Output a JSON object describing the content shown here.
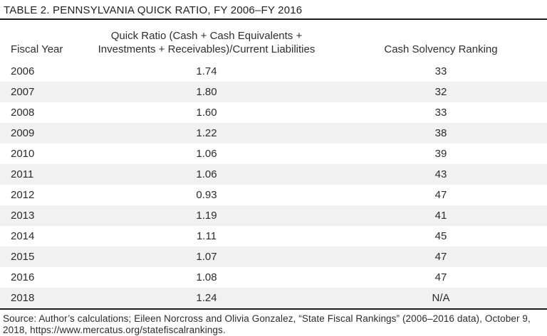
{
  "page": {
    "title": "TABLE 2. PENNSYLVANIA QUICK RATIO, FY 2006–FY 2016"
  },
  "table": {
    "header": {
      "fiscal_year": "Fiscal Year",
      "quick_ratio_line1": "Quick Ratio (Cash + Cash Equivalents +",
      "quick_ratio_line2": "Investments + Receivables)/Current Liabilities",
      "cash_solvency": "Cash Solvency Ranking"
    },
    "rows": [
      {
        "fiscal_year": "2006",
        "quick_ratio": "1.74",
        "ranking": "33"
      },
      {
        "fiscal_year": "2007",
        "quick_ratio": "1.80",
        "ranking": "32"
      },
      {
        "fiscal_year": "2008",
        "quick_ratio": "1.60",
        "ranking": "33"
      },
      {
        "fiscal_year": "2009",
        "quick_ratio": "1.22",
        "ranking": "38"
      },
      {
        "fiscal_year": "2010",
        "quick_ratio": "1.06",
        "ranking": "39"
      },
      {
        "fiscal_year": "2011",
        "quick_ratio": "1.06",
        "ranking": "43"
      },
      {
        "fiscal_year": "2012",
        "quick_ratio": "0.93",
        "ranking": "47"
      },
      {
        "fiscal_year": "2013",
        "quick_ratio": "1.19",
        "ranking": "41"
      },
      {
        "fiscal_year": "2014",
        "quick_ratio": "1.11",
        "ranking": "45"
      },
      {
        "fiscal_year": "2015",
        "quick_ratio": "1.07",
        "ranking": "47"
      },
      {
        "fiscal_year": "2016",
        "quick_ratio": "1.08",
        "ranking": "47"
      },
      {
        "fiscal_year": "2018",
        "quick_ratio": "1.24",
        "ranking": "N/A"
      }
    ],
    "source_note": "Source: Author’s calculations; Eileen Norcross and Olivia Gonzalez, “State Fiscal Rankings” (2006–2016 data), October 9, 2018, https://www.mercatus.org/statefiscalrankings."
  },
  "colors": {
    "stripe": "#f1f1f2",
    "text": "#2a2a2a",
    "rule": "#1b1b1b"
  }
}
